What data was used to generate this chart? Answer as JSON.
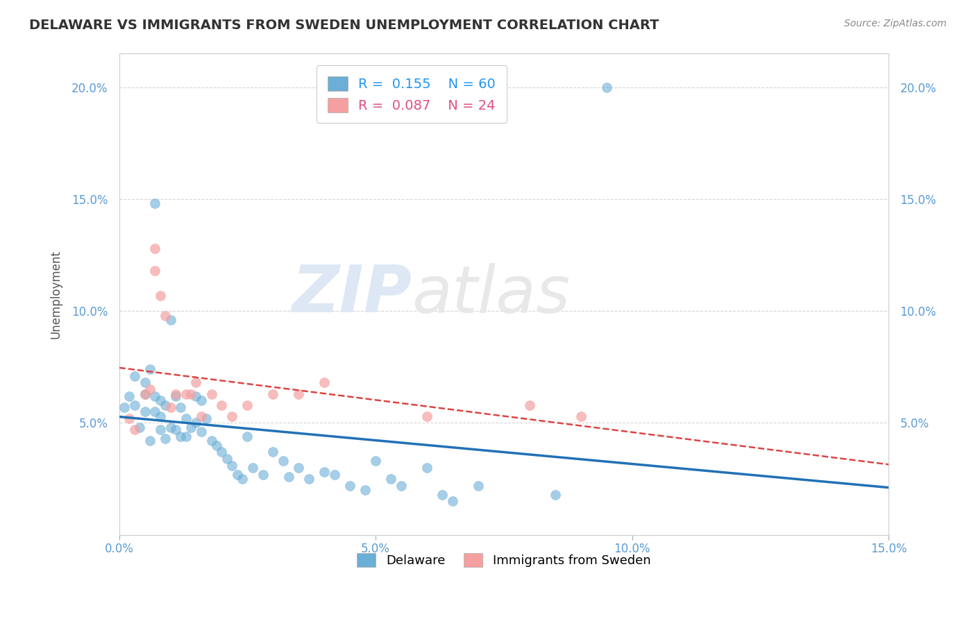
{
  "title": "DELAWARE VS IMMIGRANTS FROM SWEDEN UNEMPLOYMENT CORRELATION CHART",
  "source": "Source: ZipAtlas.com",
  "ylabel": "Unemployment",
  "xmin": 0.0,
  "xmax": 0.15,
  "ymin": 0.0,
  "ymax": 0.215,
  "yticks": [
    0.05,
    0.1,
    0.15,
    0.2
  ],
  "ytick_labels": [
    "5.0%",
    "10.0%",
    "15.0%",
    "20.0%"
  ],
  "xticks": [
    0.0,
    0.05,
    0.1,
    0.15
  ],
  "xtick_labels": [
    "0.0%",
    "5.0%",
    "10.0%",
    "15.0%"
  ],
  "legend_bottom_labels": [
    "Delaware",
    "Immigrants from Sweden"
  ],
  "r_delaware": 0.155,
  "n_delaware": 60,
  "r_sweden": 0.087,
  "n_sweden": 24,
  "color_delaware": "#6baed6",
  "color_sweden": "#f4a0a0",
  "line_color_delaware": "#2171b5",
  "line_color_sweden": "#d44",
  "background_color": "#ffffff",
  "grid_color": "#cccccc",
  "watermark_color": "#e4e4e4",
  "delaware_x": [
    0.001,
    0.002,
    0.003,
    0.003,
    0.004,
    0.005,
    0.005,
    0.005,
    0.006,
    0.006,
    0.007,
    0.007,
    0.007,
    0.008,
    0.008,
    0.008,
    0.009,
    0.009,
    0.01,
    0.01,
    0.011,
    0.011,
    0.012,
    0.012,
    0.013,
    0.013,
    0.014,
    0.015,
    0.015,
    0.016,
    0.016,
    0.017,
    0.018,
    0.019,
    0.02,
    0.021,
    0.022,
    0.023,
    0.024,
    0.025,
    0.026,
    0.028,
    0.03,
    0.032,
    0.033,
    0.035,
    0.037,
    0.04,
    0.042,
    0.045,
    0.048,
    0.05,
    0.053,
    0.055,
    0.06,
    0.063,
    0.065,
    0.07,
    0.085,
    0.095
  ],
  "delaware_y": [
    0.057,
    0.062,
    0.058,
    0.071,
    0.048,
    0.055,
    0.063,
    0.068,
    0.074,
    0.042,
    0.055,
    0.062,
    0.148,
    0.047,
    0.053,
    0.06,
    0.043,
    0.058,
    0.048,
    0.096,
    0.047,
    0.062,
    0.044,
    0.057,
    0.044,
    0.052,
    0.048,
    0.05,
    0.062,
    0.046,
    0.06,
    0.052,
    0.042,
    0.04,
    0.037,
    0.034,
    0.031,
    0.027,
    0.025,
    0.044,
    0.03,
    0.027,
    0.037,
    0.033,
    0.026,
    0.03,
    0.025,
    0.028,
    0.027,
    0.022,
    0.02,
    0.033,
    0.025,
    0.022,
    0.03,
    0.018,
    0.015,
    0.022,
    0.018,
    0.2
  ],
  "sweden_x": [
    0.002,
    0.003,
    0.005,
    0.006,
    0.007,
    0.007,
    0.008,
    0.009,
    0.01,
    0.011,
    0.013,
    0.014,
    0.015,
    0.016,
    0.018,
    0.02,
    0.022,
    0.025,
    0.03,
    0.035,
    0.04,
    0.06,
    0.08,
    0.09
  ],
  "sweden_y": [
    0.052,
    0.047,
    0.063,
    0.065,
    0.128,
    0.118,
    0.107,
    0.098,
    0.057,
    0.063,
    0.063,
    0.063,
    0.068,
    0.053,
    0.063,
    0.058,
    0.053,
    0.058,
    0.063,
    0.063,
    0.068,
    0.053,
    0.058,
    0.053
  ]
}
